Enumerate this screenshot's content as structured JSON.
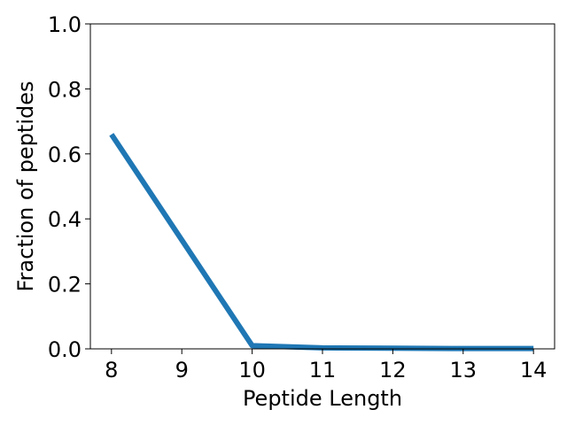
{
  "chart_data": {
    "type": "line",
    "title": "",
    "xlabel": "Peptide Length",
    "ylabel": "Fraction of peptides",
    "x": [
      8,
      9,
      10,
      11,
      12,
      13,
      14
    ],
    "series": [
      {
        "values": [
          0.66,
          0.335,
          0.01,
          0.003,
          0.002,
          0.001,
          0.001
        ],
        "color": "#1f77b4"
      }
    ],
    "xlim": [
      7.7,
      14.3
    ],
    "ylim": [
      0.0,
      1.0
    ],
    "xticks": [
      "8",
      "9",
      "10",
      "11",
      "12",
      "13",
      "14"
    ],
    "yticks": [
      "0.0",
      "0.2",
      "0.4",
      "0.6",
      "0.8",
      "1.0"
    ],
    "grid": false,
    "legend": "none"
  }
}
